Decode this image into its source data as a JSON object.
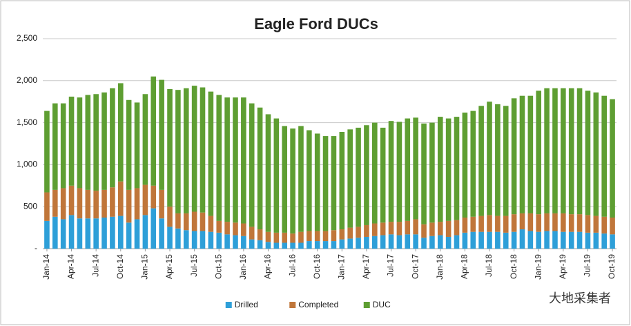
{
  "chart_data": {
    "type": "stacked_bar",
    "title": "Eagle Ford DUCs",
    "categories": [
      "Jan-14",
      null,
      null,
      "Apr-14",
      null,
      null,
      "Jul-14",
      null,
      null,
      "Oct-14",
      null,
      null,
      "Jan-15",
      null,
      null,
      "Apr-15",
      null,
      null,
      "Jul-15",
      null,
      null,
      "Oct-15",
      null,
      null,
      "Jan-16",
      null,
      null,
      "Apr-16",
      null,
      null,
      "Jul-16",
      null,
      null,
      "Oct-16",
      null,
      null,
      "Jan-17",
      null,
      null,
      "Apr-17",
      null,
      null,
      "Jul-17",
      null,
      null,
      "Oct-17",
      null,
      null,
      "Jan-18",
      null,
      null,
      "Apr-18",
      null,
      null,
      "Jul-18",
      null,
      null,
      "Oct-18",
      null,
      null,
      "Jan-19",
      null,
      null,
      "Apr-19",
      null,
      null,
      "Jul-19",
      null,
      null,
      "Oct-19"
    ],
    "series": [
      {
        "name": "Drilled",
        "color": "#2e9fd8",
        "values": [
          330,
          380,
          350,
          400,
          360,
          360,
          360,
          370,
          380,
          390,
          310,
          350,
          400,
          480,
          360,
          260,
          240,
          220,
          210,
          210,
          200,
          190,
          170,
          160,
          150,
          110,
          100,
          80,
          70,
          70,
          70,
          70,
          90,
          90,
          90,
          90,
          110,
          120,
          130,
          140,
          150,
          160,
          170,
          160,
          170,
          170,
          130,
          150,
          160,
          140,
          160,
          190,
          200,
          200,
          200,
          200,
          190,
          200,
          230,
          210,
          200,
          210,
          210,
          200,
          200,
          200,
          190,
          190,
          180,
          170
        ]
      },
      {
        "name": "Completed",
        "color": "#c0763a",
        "values": [
          340,
          320,
          370,
          350,
          360,
          340,
          330,
          330,
          350,
          410,
          390,
          370,
          360,
          270,
          340,
          240,
          180,
          200,
          230,
          220,
          190,
          140,
          150,
          150,
          150,
          150,
          130,
          120,
          120,
          120,
          110,
          130,
          120,
          120,
          120,
          130,
          120,
          130,
          130,
          140,
          150,
          150,
          150,
          160,
          160,
          180,
          160,
          160,
          160,
          190,
          180,
          180,
          180,
          190,
          200,
          190,
          200,
          210,
          190,
          210,
          210,
          210,
          210,
          220,
          210,
          210,
          210,
          200,
          200,
          200
        ]
      },
      {
        "name": "DUC",
        "color": "#5e9e32",
        "values": [
          970,
          1030,
          1010,
          1060,
          1080,
          1130,
          1150,
          1160,
          1180,
          1170,
          1070,
          1020,
          1080,
          1300,
          1310,
          1400,
          1470,
          1490,
          1500,
          1490,
          1480,
          1500,
          1480,
          1490,
          1500,
          1470,
          1450,
          1400,
          1360,
          1270,
          1250,
          1260,
          1200,
          1160,
          1130,
          1120,
          1160,
          1170,
          1180,
          1190,
          1200,
          1130,
          1200,
          1190,
          1220,
          1210,
          1200,
          1190,
          1250,
          1220,
          1230,
          1250,
          1260,
          1310,
          1350,
          1330,
          1310,
          1380,
          1400,
          1400,
          1470,
          1490,
          1490,
          1490,
          1500,
          1500,
          1480,
          1470,
          1440,
          1410
        ]
      }
    ],
    "ylim": [
      0,
      2500
    ],
    "yticks": [
      {
        "value": 0,
        "label": "-"
      },
      500,
      {
        "value": 1000,
        "label": "1,000"
      },
      {
        "value": 1500,
        "label": "1,500"
      },
      {
        "value": 2000,
        "label": "2,000"
      },
      {
        "value": 2500,
        "label": "2,500"
      }
    ],
    "grid": true,
    "legend": "bottom",
    "watermark": "大地采集者"
  }
}
